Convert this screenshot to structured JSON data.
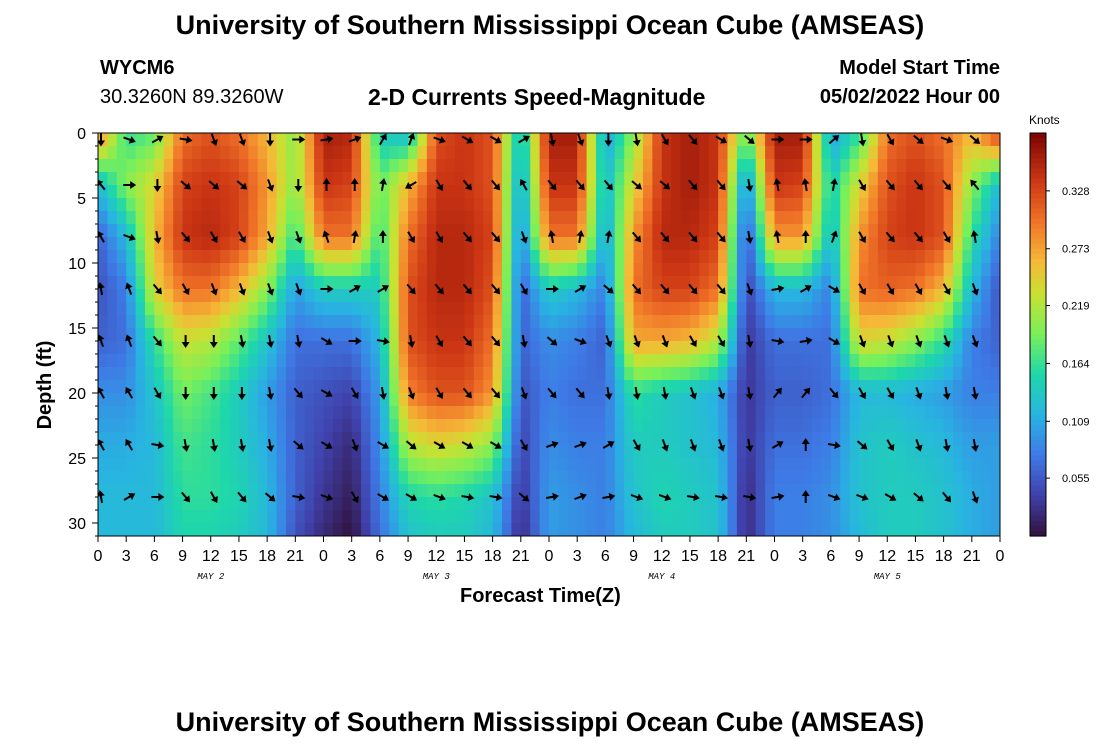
{
  "header": {
    "title": "University of Southern Mississippi Ocean Cube (AMSEAS)",
    "station_id": "WYCM6",
    "station_coords": "30.3260N  89.3260W",
    "plot_title": "2-D Currents Speed-Magnitude",
    "model_start_label": "Model Start Time",
    "model_start_value": "05/02/2022 Hour 00"
  },
  "footer": {
    "title": "University of Southern Mississippi Ocean Cube (AMSEAS)"
  },
  "chart_data": {
    "type": "heatmap",
    "title": "2-D Currents Speed-Magnitude",
    "xlabel": "Forecast Time(Z)",
    "ylabel": "Depth (ft)",
    "colorbar_label": "Knots",
    "colorbar_ticks": [
      "0.055",
      "0.109",
      "0.164",
      "0.219",
      "0.273",
      "0.328"
    ],
    "colorbar_tick_values": [
      0.055,
      0.109,
      0.164,
      0.219,
      0.273,
      0.328
    ],
    "colorbar_range": [
      0.0,
      0.383
    ],
    "x_tick_labels": [
      "0",
      "3",
      "6",
      "9",
      "12",
      "15",
      "18",
      "21",
      "0",
      "3",
      "6",
      "9",
      "12",
      "15",
      "18",
      "21",
      "0",
      "3",
      "6",
      "9",
      "12",
      "15",
      "18",
      "21",
      "0",
      "3",
      "6",
      "9",
      "12",
      "15",
      "18",
      "21",
      "0"
    ],
    "x_range_hours": [
      0,
      96
    ],
    "date_labels": [
      {
        "text": "MAY 2",
        "hour": 12
      },
      {
        "text": "MAY 3",
        "hour": 36
      },
      {
        "text": "MAY 4",
        "hour": 60
      },
      {
        "text": "MAY 5",
        "hour": 84
      }
    ],
    "y_tick_labels": [
      "0",
      "5",
      "10",
      "15",
      "20",
      "25",
      "30"
    ],
    "y_tick_values": [
      0,
      5,
      10,
      15,
      20,
      25,
      30
    ],
    "y_range": [
      0,
      31
    ],
    "vector_hours": [
      0,
      3,
      6,
      9,
      12,
      15,
      18,
      21,
      24,
      27,
      30,
      33,
      36,
      39,
      42,
      45,
      48,
      51,
      54,
      57,
      60,
      63,
      66,
      69,
      72,
      75,
      78,
      81,
      84,
      87,
      90,
      93
    ],
    "vector_depths": [
      0.5,
      4,
      8,
      12,
      16,
      20,
      24,
      28
    ],
    "speed_grid_hours": [
      0,
      3,
      6,
      9,
      12,
      15,
      18,
      21,
      24,
      27,
      30,
      33,
      36,
      39,
      42,
      45,
      48,
      51,
      54,
      57,
      60,
      63,
      66,
      69,
      72,
      75,
      78,
      81,
      84,
      87,
      90,
      93,
      96
    ],
    "speed_grid_depths": [
      0,
      4,
      8,
      12,
      16,
      20,
      24,
      28,
      31
    ],
    "speed_knots": [
      [
        0.3,
        0.16,
        0.18,
        0.3,
        0.32,
        0.3,
        0.26,
        0.2,
        0.36,
        0.35,
        0.14,
        0.12,
        0.32,
        0.34,
        0.32,
        0.12,
        0.36,
        0.36,
        0.1,
        0.2,
        0.34,
        0.36,
        0.34,
        0.18,
        0.36,
        0.36,
        0.1,
        0.16,
        0.3,
        0.32,
        0.3,
        0.26,
        0.34
      ],
      [
        0.12,
        0.2,
        0.24,
        0.33,
        0.34,
        0.33,
        0.28,
        0.2,
        0.34,
        0.33,
        0.18,
        0.26,
        0.34,
        0.34,
        0.32,
        0.1,
        0.34,
        0.34,
        0.12,
        0.24,
        0.34,
        0.36,
        0.34,
        0.08,
        0.34,
        0.33,
        0.14,
        0.24,
        0.32,
        0.34,
        0.32,
        0.2,
        0.12
      ],
      [
        0.06,
        0.12,
        0.26,
        0.34,
        0.35,
        0.33,
        0.27,
        0.16,
        0.3,
        0.3,
        0.16,
        0.3,
        0.35,
        0.35,
        0.33,
        0.08,
        0.3,
        0.3,
        0.1,
        0.28,
        0.35,
        0.35,
        0.33,
        0.04,
        0.28,
        0.28,
        0.12,
        0.28,
        0.33,
        0.34,
        0.32,
        0.16,
        0.08
      ],
      [
        0.05,
        0.08,
        0.24,
        0.3,
        0.3,
        0.26,
        0.2,
        0.1,
        0.14,
        0.14,
        0.14,
        0.32,
        0.35,
        0.35,
        0.32,
        0.06,
        0.14,
        0.12,
        0.08,
        0.3,
        0.33,
        0.33,
        0.3,
        0.04,
        0.12,
        0.12,
        0.08,
        0.3,
        0.31,
        0.3,
        0.26,
        0.12,
        0.05
      ],
      [
        0.06,
        0.07,
        0.16,
        0.23,
        0.22,
        0.18,
        0.13,
        0.07,
        0.07,
        0.07,
        0.12,
        0.32,
        0.34,
        0.34,
        0.3,
        0.06,
        0.09,
        0.08,
        0.06,
        0.27,
        0.27,
        0.26,
        0.22,
        0.03,
        0.07,
        0.07,
        0.07,
        0.24,
        0.23,
        0.2,
        0.16,
        0.08,
        0.06
      ],
      [
        0.09,
        0.09,
        0.13,
        0.19,
        0.17,
        0.14,
        0.1,
        0.06,
        0.05,
        0.04,
        0.1,
        0.29,
        0.32,
        0.32,
        0.28,
        0.05,
        0.08,
        0.07,
        0.07,
        0.16,
        0.14,
        0.13,
        0.11,
        0.03,
        0.06,
        0.06,
        0.07,
        0.12,
        0.12,
        0.11,
        0.1,
        0.08,
        0.08
      ],
      [
        0.11,
        0.11,
        0.12,
        0.17,
        0.16,
        0.14,
        0.11,
        0.06,
        0.04,
        0.02,
        0.09,
        0.22,
        0.24,
        0.23,
        0.2,
        0.04,
        0.09,
        0.08,
        0.08,
        0.14,
        0.14,
        0.13,
        0.12,
        0.03,
        0.07,
        0.07,
        0.08,
        0.13,
        0.14,
        0.13,
        0.12,
        0.1,
        0.1
      ],
      [
        0.12,
        0.12,
        0.12,
        0.16,
        0.16,
        0.15,
        0.12,
        0.06,
        0.03,
        0.01,
        0.08,
        0.15,
        0.16,
        0.15,
        0.13,
        0.03,
        0.1,
        0.09,
        0.08,
        0.13,
        0.15,
        0.14,
        0.13,
        0.02,
        0.08,
        0.08,
        0.09,
        0.13,
        0.14,
        0.14,
        0.13,
        0.11,
        0.1
      ],
      [
        0.12,
        0.12,
        0.12,
        0.15,
        0.15,
        0.14,
        0.12,
        0.05,
        0.02,
        0.0,
        0.07,
        0.13,
        0.14,
        0.14,
        0.12,
        0.02,
        0.1,
        0.09,
        0.08,
        0.12,
        0.14,
        0.14,
        0.13,
        0.02,
        0.08,
        0.08,
        0.09,
        0.12,
        0.14,
        0.14,
        0.13,
        0.11,
        0.1
      ]
    ],
    "vector_direction_deg": [
      [
        180,
        110,
        60,
        100,
        160,
        160,
        180,
        90,
        80,
        70,
        30,
        20,
        110,
        120,
        120,
        60,
        170,
        160,
        180,
        170,
        150,
        140,
        120,
        130,
        90,
        90,
        50,
        170,
        150,
        130,
        110,
        130
      ],
      [
        320,
        90,
        180,
        130,
        130,
        130,
        160,
        180,
        0,
        0,
        10,
        240,
        150,
        140,
        140,
        330,
        140,
        140,
        140,
        130,
        130,
        140,
        140,
        170,
        350,
        350,
        10,
        150,
        140,
        140,
        140,
        320
      ],
      [
        330,
        110,
        170,
        140,
        150,
        150,
        160,
        160,
        340,
        10,
        0,
        150,
        150,
        140,
        140,
        160,
        350,
        10,
        10,
        140,
        140,
        140,
        140,
        170,
        350,
        0,
        20,
        150,
        140,
        140,
        150,
        350
      ],
      [
        350,
        340,
        140,
        150,
        160,
        160,
        160,
        160,
        90,
        60,
        60,
        140,
        140,
        140,
        140,
        150,
        90,
        60,
        130,
        140,
        140,
        140,
        140,
        160,
        80,
        60,
        120,
        150,
        150,
        150,
        150,
        160
      ],
      [
        340,
        340,
        140,
        180,
        180,
        170,
        170,
        170,
        120,
        90,
        100,
        170,
        150,
        140,
        140,
        170,
        130,
        110,
        160,
        160,
        160,
        150,
        150,
        170,
        100,
        80,
        120,
        160,
        160,
        160,
        160,
        160
      ],
      [
        330,
        330,
        150,
        180,
        180,
        180,
        170,
        140,
        120,
        150,
        170,
        160,
        150,
        140,
        140,
        160,
        140,
        140,
        170,
        170,
        170,
        160,
        160,
        170,
        40,
        40,
        140,
        150,
        150,
        160,
        170,
        170
      ],
      [
        330,
        330,
        100,
        170,
        170,
        170,
        170,
        130,
        120,
        160,
        120,
        130,
        120,
        120,
        120,
        150,
        70,
        70,
        60,
        150,
        160,
        160,
        160,
        170,
        60,
        0,
        100,
        130,
        150,
        160,
        170,
        170
      ],
      [
        350,
        60,
        90,
        140,
        150,
        140,
        130,
        100,
        110,
        150,
        120,
        120,
        110,
        100,
        100,
        130,
        80,
        70,
        80,
        110,
        110,
        100,
        100,
        100,
        80,
        0,
        110,
        110,
        120,
        130,
        140,
        160
      ]
    ]
  }
}
